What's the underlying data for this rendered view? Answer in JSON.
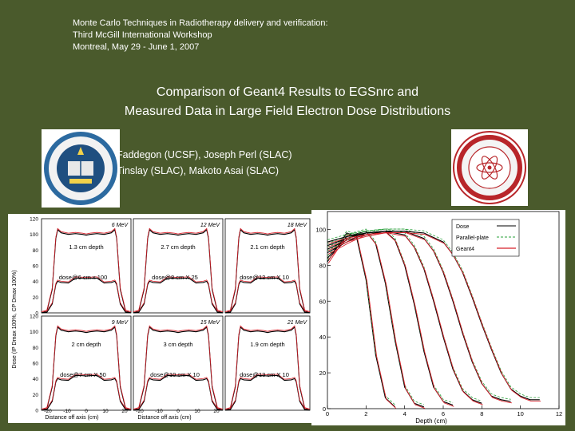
{
  "header": {
    "line1": "Monte Carlo Techniques in Radiotherapy delivery and verification:",
    "line2": "Third McGill International Workshop",
    "line3": "Montreal, May 29 - June 1, 2007"
  },
  "title": {
    "line1": "Comparison of Geant4 Results to EGSnrc and",
    "line2": "Measured Data in Large Field Electron Dose Distributions"
  },
  "authors": {
    "line1": "Faddegon (UCSF), Joseph Perl (SLAC)",
    "line2": "Tinslay (SLAC), Makoto Asai (SLAC)"
  },
  "credit": "Joseph Perl (SLAC)",
  "left_plot": {
    "ylabel": "Dose (IP Dmax 100%, CP Dmax 100%)",
    "yticks": [
      "0",
      "20",
      "40",
      "60",
      "80",
      "100",
      "120"
    ],
    "xticks": [
      "-20",
      "-10",
      "0",
      "10",
      "20"
    ],
    "xlabel": "Distance off axis (cm)",
    "panels": [
      {
        "energy": "6 MeV",
        "depth": "1.3 cm depth",
        "dose": "dose@6 cm x 100"
      },
      {
        "energy": "12 MeV",
        "depth": "2.7 cm depth",
        "dose": "dose@8 cm X 25"
      },
      {
        "energy": "18 MeV",
        "depth": "2.1 cm depth",
        "dose": "dose@12 cm X 10"
      },
      {
        "energy": "9 MeV",
        "depth": "2 cm depth",
        "dose": "dose@7 cm X 50"
      },
      {
        "energy": "15 MeV",
        "depth": "3 cm depth",
        "dose": "dose@10 cm X 10"
      },
      {
        "energy": "21 MeV",
        "depth": "1.9 cm depth",
        "dose": "dose@13 cm X 10"
      }
    ]
  },
  "chart_data": {
    "type": "line",
    "xlabel": "Depth (cm)",
    "ylabel": "",
    "xlim": [
      0,
      12
    ],
    "ylim": [
      0,
      110
    ],
    "xticks": [
      "0",
      "2",
      "4",
      "6",
      "8",
      "10",
      "12"
    ],
    "yticks": [
      "0",
      "20",
      "40",
      "60",
      "80",
      "100"
    ],
    "legend": [
      "Dose",
      "Parallel-plate",
      "Geant4"
    ],
    "legend_position": "top-right",
    "curves": [
      {
        "energy": 6,
        "x": [
          0,
          0.5,
          1,
          1.5,
          2,
          2.5,
          3,
          3.5
        ],
        "y": [
          82,
          90,
          98,
          96,
          72,
          30,
          6,
          1
        ]
      },
      {
        "energy": 9,
        "x": [
          0,
          0.5,
          1,
          2,
          2.5,
          3,
          3.5,
          4,
          4.5,
          5
        ],
        "y": [
          84,
          90,
          96,
          99,
          92,
          70,
          38,
          12,
          3,
          1
        ]
      },
      {
        "energy": 12,
        "x": [
          0,
          1,
          2,
          3,
          3.5,
          4,
          4.5,
          5,
          5.5,
          6,
          6.5
        ],
        "y": [
          87,
          93,
          98,
          99,
          94,
          80,
          58,
          32,
          12,
          4,
          2
        ]
      },
      {
        "energy": 15,
        "x": [
          0,
          1,
          2,
          3,
          4,
          4.5,
          5,
          5.5,
          6,
          6.5,
          7,
          7.5,
          8
        ],
        "y": [
          89,
          94,
          97,
          99,
          97,
          90,
          78,
          60,
          40,
          22,
          10,
          5,
          3
        ]
      },
      {
        "energy": 18,
        "x": [
          0,
          1,
          2,
          3,
          4,
          5,
          5.5,
          6,
          6.5,
          7,
          7.5,
          8,
          8.5,
          9,
          9.5
        ],
        "y": [
          91,
          95,
          98,
          99,
          99,
          95,
          88,
          76,
          60,
          42,
          26,
          14,
          7,
          5,
          4
        ]
      },
      {
        "energy": 21,
        "x": [
          0,
          1,
          2,
          3,
          4,
          5,
          6,
          6.5,
          7,
          7.5,
          8,
          8.5,
          9,
          9.5,
          10,
          10.5,
          11
        ],
        "y": [
          93,
          96,
          98,
          99,
          99,
          98,
          93,
          86,
          76,
          62,
          47,
          33,
          20,
          11,
          7,
          5,
          5
        ]
      }
    ]
  }
}
